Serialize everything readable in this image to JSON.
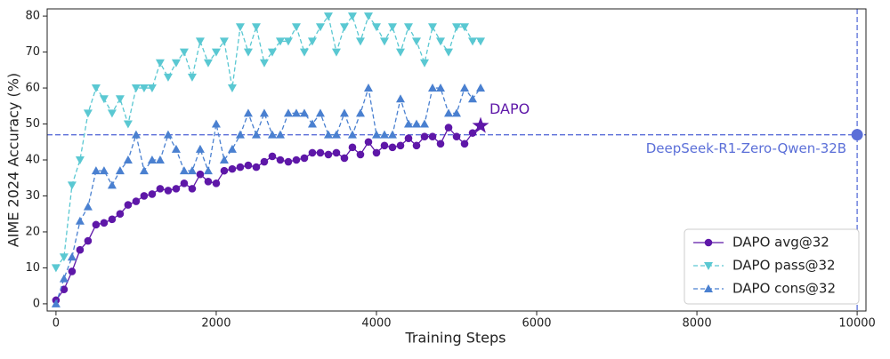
{
  "chart_data": {
    "type": "line",
    "xlabel": "Training Steps",
    "ylabel": "AIME 2024 Accuracy (%)",
    "x": [
      0,
      100,
      200,
      300,
      400,
      500,
      600,
      700,
      800,
      900,
      1000,
      1100,
      1200,
      1300,
      1400,
      1500,
      1600,
      1700,
      1800,
      1900,
      2000,
      2100,
      2200,
      2300,
      2400,
      2500,
      2600,
      2700,
      2800,
      2900,
      3000,
      3100,
      3200,
      3300,
      3400,
      3500,
      3600,
      3700,
      3800,
      3900,
      4000,
      4100,
      4200,
      4300,
      4400,
      4500,
      4600,
      4700,
      4800,
      4900,
      5000,
      5100,
      5200,
      5300
    ],
    "series": [
      {
        "name": "DAPO avg@32",
        "color": "#5e17a8",
        "marker": "circle",
        "dash": false,
        "values": [
          1,
          4,
          9,
          15,
          17.5,
          22,
          22.5,
          23.5,
          25,
          27.5,
          28.5,
          30,
          30.5,
          32,
          31.5,
          32,
          33.5,
          32,
          36,
          34,
          33.5,
          37,
          37.5,
          38,
          38.5,
          38,
          39.5,
          41,
          40,
          39.5,
          40,
          40.5,
          42,
          42,
          41.5,
          42,
          40.5,
          43.5,
          41.5,
          45,
          42,
          44,
          43.5,
          44,
          46,
          44,
          46.5,
          46.5,
          44.5,
          49,
          46.5,
          44.5,
          47.5,
          49.5
        ]
      },
      {
        "name": "DAPO pass@32",
        "color": "#5ac8d2",
        "marker": "triangle-down",
        "dash": true,
        "values": [
          10,
          13,
          33,
          40,
          53,
          60,
          57,
          53,
          57,
          50,
          60,
          60,
          60,
          67,
          63,
          67,
          70,
          63,
          73,
          67,
          70,
          73,
          60,
          77,
          70,
          77,
          67,
          70,
          73,
          73,
          77,
          70,
          73,
          77,
          80,
          70,
          77,
          80,
          73,
          80,
          77,
          73,
          77,
          70,
          77,
          73,
          67,
          77,
          73,
          70,
          77,
          77,
          73,
          73
        ]
      },
      {
        "name": "DAPO cons@32",
        "color": "#4a80d0",
        "marker": "triangle-up",
        "dash": true,
        "values": [
          0,
          7,
          13,
          23,
          27,
          37,
          37,
          33,
          37,
          40,
          47,
          37,
          40,
          40,
          47,
          43,
          37,
          37,
          43,
          37,
          50,
          40,
          43,
          47,
          53,
          47,
          53,
          47,
          47,
          53,
          53,
          53,
          50,
          53,
          47,
          47,
          53,
          47,
          53,
          60,
          47,
          47,
          47,
          57,
          50,
          50,
          50,
          60,
          60,
          53,
          53,
          60,
          57,
          60
        ]
      }
    ],
    "end_label": "DAPO",
    "reference": {
      "label": "DeepSeek-R1-Zero-Qwen-32B",
      "x": 10000,
      "y": 47,
      "color": "#5b6fd8"
    },
    "xlim": [
      -110,
      10110
    ],
    "xticks": [
      0,
      2000,
      4000,
      6000,
      8000,
      10000
    ],
    "ylim": [
      -2,
      82
    ],
    "yticks": [
      0,
      10,
      20,
      30,
      40,
      50,
      60,
      70,
      80
    ],
    "grid": false,
    "legend": "lower right"
  }
}
